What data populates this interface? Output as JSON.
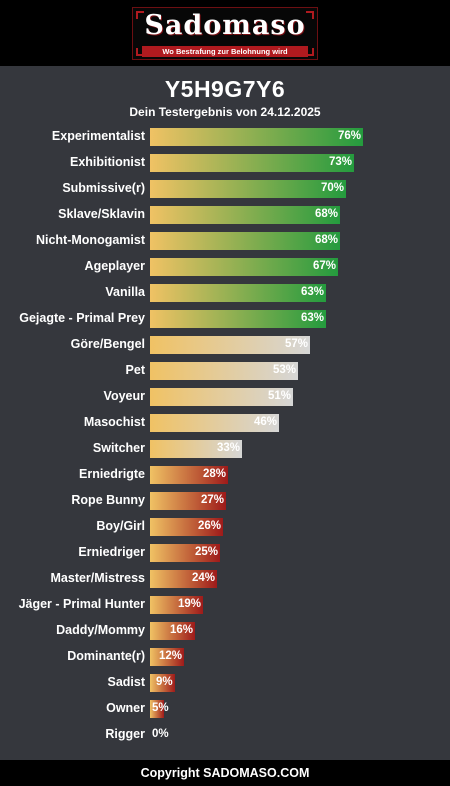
{
  "logo": {
    "name": "Sadomaso",
    "tagline": "Wo Bestrafung zur Belohnung wird"
  },
  "header": {
    "title": "Y5H9G7Y6",
    "subtitle": "Dein Testergebnis von 24.12.2025"
  },
  "chart_data": {
    "type": "bar",
    "orientation": "horizontal",
    "value_suffix": "%",
    "xlim": [
      0,
      100
    ],
    "grid": false,
    "categories": [
      "Experimentalist",
      "Exhibitionist",
      "Submissive(r)",
      "Sklave/Sklavin",
      "Nicht-Monogamist",
      "Ageplayer",
      "Vanilla",
      "Gejagte - Primal Prey",
      "Göre/Bengel",
      "Pet",
      "Voyeur",
      "Masochist",
      "Switcher",
      "Erniedrigte",
      "Rope Bunny",
      "Boy/Girl",
      "Erniedriger",
      "Master/Mistress",
      "Jäger - Primal Hunter",
      "Daddy/Mommy",
      "Dominante(r)",
      "Sadist",
      "Owner",
      "Rigger"
    ],
    "values": [
      76,
      73,
      70,
      68,
      68,
      67,
      63,
      63,
      57,
      53,
      51,
      46,
      33,
      28,
      27,
      26,
      25,
      24,
      19,
      16,
      12,
      9,
      5,
      0
    ],
    "value_labels": [
      "76%",
      "73%",
      "70%",
      "68%",
      "68%",
      "67%",
      "63%",
      "63%",
      "57%",
      "53%",
      "51%",
      "46%",
      "33%",
      "28%",
      "27%",
      "26%",
      "25%",
      "24%",
      "19%",
      "16%",
      "12%",
      "9%",
      "5%",
      "0%"
    ],
    "colors": {
      "gradient_start": "#f0c264",
      "high_end": "#249b3e",
      "mid_end": "#d6d6d6",
      "low_end": "#9e1a1a"
    }
  },
  "footer": {
    "copyright": "Copyright SADOMASO.COM"
  }
}
